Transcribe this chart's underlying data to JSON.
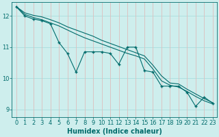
{
  "xlabel": "Humidex (Indice chaleur)",
  "background_color": "#ceeeed",
  "hgrid_color": "#aadddd",
  "vgrid_color": "#ddbdbd",
  "line_color": "#006b6b",
  "xlim": [
    -0.5,
    23.5
  ],
  "ylim": [
    8.75,
    12.45
  ],
  "xticks": [
    0,
    1,
    2,
    3,
    4,
    5,
    6,
    7,
    8,
    9,
    10,
    11,
    12,
    13,
    14,
    15,
    16,
    17,
    18,
    19,
    20,
    21,
    22,
    23
  ],
  "yticks": [
    9,
    10,
    11,
    12
  ],
  "line1_x": [
    0,
    1,
    2,
    3,
    4,
    5,
    6,
    7,
    8,
    9,
    10,
    11,
    12,
    13,
    14,
    15,
    16,
    17,
    18,
    19,
    20,
    21,
    22,
    23
  ],
  "line1_y": [
    12.3,
    12.0,
    11.9,
    11.85,
    11.75,
    11.15,
    10.8,
    10.2,
    10.85,
    10.85,
    10.85,
    10.8,
    10.45,
    11.0,
    11.0,
    10.25,
    10.2,
    9.75,
    9.75,
    9.75,
    9.55,
    9.1,
    9.4,
    9.2
  ],
  "line2_x": [
    0,
    1,
    2,
    3,
    4,
    5,
    6,
    7,
    8,
    9,
    10,
    11,
    12,
    13,
    14,
    15,
    16,
    17,
    18,
    19,
    20,
    21,
    22,
    23
  ],
  "line2_y": [
    12.3,
    12.05,
    11.95,
    11.88,
    11.78,
    11.68,
    11.55,
    11.42,
    11.3,
    11.2,
    11.1,
    11.0,
    10.9,
    10.8,
    10.72,
    10.62,
    10.3,
    9.92,
    9.78,
    9.72,
    9.58,
    9.42,
    9.28,
    9.18
  ],
  "line3_x": [
    0,
    1,
    2,
    3,
    4,
    5,
    6,
    7,
    8,
    9,
    10,
    11,
    12,
    13,
    14,
    15,
    16,
    17,
    18,
    19,
    20,
    21,
    22,
    23
  ],
  "line3_y": [
    12.3,
    12.1,
    12.02,
    11.97,
    11.88,
    11.78,
    11.65,
    11.55,
    11.45,
    11.35,
    11.22,
    11.12,
    11.02,
    10.92,
    10.82,
    10.72,
    10.42,
    10.08,
    9.85,
    9.82,
    9.65,
    9.5,
    9.35,
    9.22
  ],
  "marker": "+",
  "markersize": 3.5,
  "linewidth": 0.8,
  "xlabel_fontsize": 7,
  "tick_fontsize": 6
}
